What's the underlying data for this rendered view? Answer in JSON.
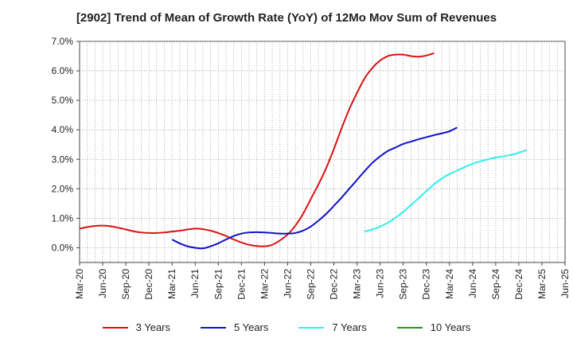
{
  "chart_data": {
    "type": "line",
    "title": "[2902]  Trend of Mean of Growth Rate (YoY) of 12Mo Mov Sum of Revenues",
    "xlabel": "",
    "ylabel": "",
    "ylim": [
      -0.5,
      7.0
    ],
    "yticks": [
      0.0,
      1.0,
      2.0,
      3.0,
      4.0,
      5.0,
      6.0,
      7.0
    ],
    "ytick_labels": [
      "0.0%",
      "1.0%",
      "2.0%",
      "3.0%",
      "4.0%",
      "5.0%",
      "6.0%",
      "7.0%"
    ],
    "xtick_labels": [
      "Mar-20",
      "Jun-20",
      "Sep-20",
      "Dec-20",
      "Mar-21",
      "Jun-21",
      "Sep-21",
      "Dec-21",
      "Mar-22",
      "Jun-22",
      "Sep-22",
      "Dec-22",
      "Mar-23",
      "Jun-23",
      "Sep-23",
      "Dec-23",
      "Mar-24",
      "Jun-24",
      "Sep-24",
      "Dec-24",
      "Mar-25",
      "Jun-25"
    ],
    "grid": true,
    "legend_position": "bottom",
    "series": [
      {
        "name": "3 Years",
        "color": "#dd1111",
        "start_index": 0,
        "values": [
          0.65,
          0.7,
          0.74,
          0.75,
          0.73,
          0.68,
          0.62,
          0.56,
          0.52,
          0.5,
          0.5,
          0.52,
          0.55,
          0.58,
          0.62,
          0.65,
          0.63,
          0.58,
          0.5,
          0.4,
          0.28,
          0.18,
          0.1,
          0.06,
          0.05,
          0.1,
          0.25,
          0.45,
          0.75,
          1.15,
          1.65,
          2.15,
          2.7,
          3.35,
          4.05,
          4.7,
          5.25,
          5.75,
          6.1,
          6.35,
          6.5,
          6.55,
          6.55,
          6.5,
          6.48,
          6.52,
          6.6
        ]
      },
      {
        "name": "5 Years",
        "color": "#1111cc",
        "start_index": 12,
        "values": [
          0.28,
          0.15,
          0.05,
          0.0,
          -0.02,
          0.05,
          0.15,
          0.28,
          0.4,
          0.48,
          0.52,
          0.53,
          0.52,
          0.5,
          0.48,
          0.48,
          0.5,
          0.58,
          0.72,
          0.92,
          1.15,
          1.42,
          1.7,
          2.0,
          2.3,
          2.6,
          2.88,
          3.1,
          3.28,
          3.4,
          3.52,
          3.6,
          3.68,
          3.75,
          3.82,
          3.88,
          3.95,
          4.08
        ]
      },
      {
        "name": "7 Years",
        "color": "#33eeee",
        "start_index": 37,
        "values": [
          0.55,
          0.62,
          0.72,
          0.85,
          1.02,
          1.22,
          1.45,
          1.68,
          1.92,
          2.15,
          2.35,
          2.5,
          2.62,
          2.74,
          2.85,
          2.93,
          3.0,
          3.06,
          3.1,
          3.15,
          3.22,
          3.32
        ]
      },
      {
        "name": "10 Years",
        "color": "#229922",
        "start_index": 0,
        "values": []
      }
    ]
  }
}
